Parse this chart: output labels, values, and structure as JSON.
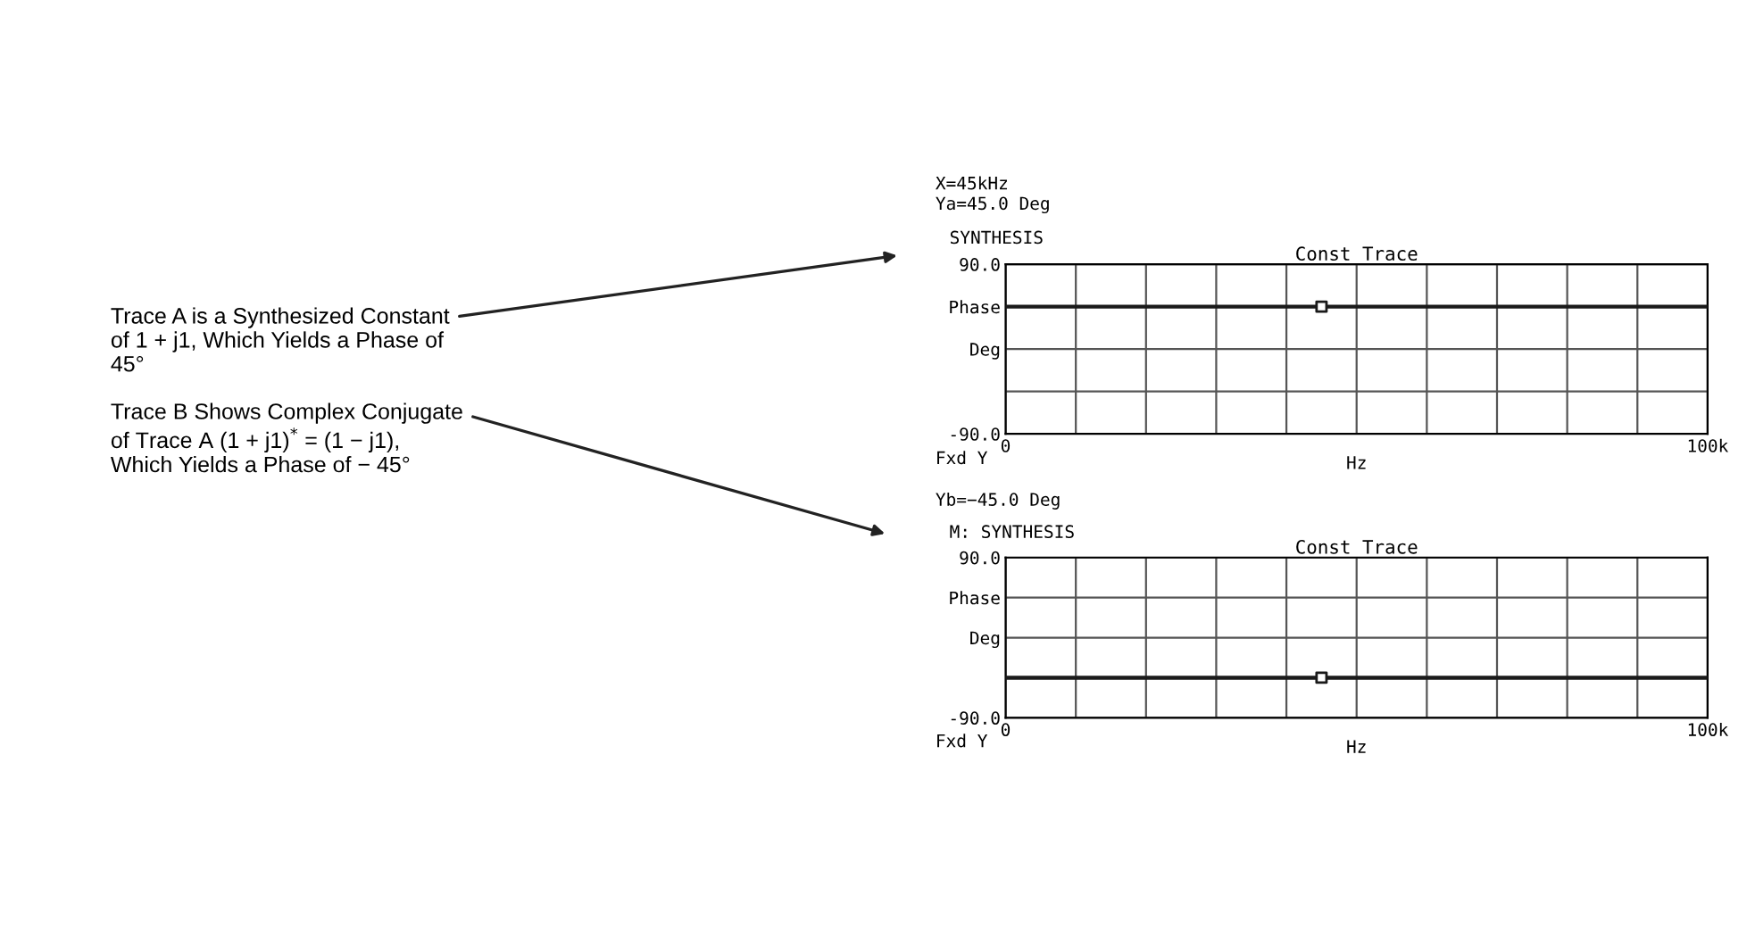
{
  "chart_data": [
    {
      "type": "line",
      "title": "Const Trace",
      "xlabel": "Hz",
      "annotations": [
        "Trace A is a Synthesized Constant\nof 1 + j1, Which Yields a Phase of\n45°",
        "X=45kHz",
        "Ya=45.0 Deg",
        "SYNTHESIS",
        "Fxd Y"
      ],
      "series": [
        {
          "color": "#1a1a1a",
          "x": [
            0,
            100000
          ],
          "values": [
            45,
            45
          ]
        },
        {
          "type": "scatter",
          "color": "#1a1a1a",
          "x": [
            45000
          ],
          "values": [
            45
          ],
          "marker": "square"
        }
      ],
      "xlim": [
        0,
        100000
      ],
      "ylim": [
        -90,
        90
      ],
      "xticks": [
        0,
        {
          "value": 10000,
          "label": null
        },
        {
          "value": 20000,
          "label": null
        },
        {
          "value": 30000,
          "label": null
        },
        {
          "value": 40000,
          "label": null
        },
        {
          "value": 50000,
          "label": null
        },
        {
          "value": 60000,
          "label": null
        },
        {
          "value": 70000,
          "label": null
        },
        {
          "value": 80000,
          "label": null
        },
        {
          "value": 90000,
          "label": null
        },
        {
          "value": 100000,
          "label": "100k"
        }
      ],
      "yticks": [
        {
          "value": 90,
          "label": "90.0"
        },
        {
          "value": 45,
          "label": "Phase"
        },
        {
          "value": 0,
          "label": "Deg"
        },
        {
          "value": -45,
          "label": null
        },
        {
          "value": -90,
          "label": "-90.0"
        }
      ],
      "grid": true
    },
    {
      "type": "line",
      "title": "Const Trace",
      "xlabel": "Hz",
      "annotations": [
        "Trace B Shows Complex Conjugate\nof Trace A (1 + j1)$^{*}$ = (1 − j1),\nWhich Yields a Phase of − 45°",
        "Yb=−45.0 Deg",
        "M: SYNTHESIS",
        "Fxd Y"
      ],
      "series": [
        {
          "color": "#1a1a1a",
          "x": [
            0,
            100000
          ],
          "values": [
            -45,
            -45
          ]
        },
        {
          "type": "scatter",
          "color": "#1a1a1a",
          "x": [
            45000
          ],
          "values": [
            -45
          ],
          "marker": "square"
        }
      ],
      "xlim": [
        0,
        100000
      ],
      "ylim": [
        -90,
        90
      ],
      "xticks": [
        0,
        {
          "value": 10000,
          "label": null
        },
        {
          "value": 20000,
          "label": null
        },
        {
          "value": 30000,
          "label": null
        },
        {
          "value": 40000,
          "label": null
        },
        {
          "value": 50000,
          "label": null
        },
        {
          "value": 60000,
          "label": null
        },
        {
          "value": 70000,
          "label": null
        },
        {
          "value": 80000,
          "label": null
        },
        {
          "value": 90000,
          "label": null
        },
        {
          "value": 100000,
          "label": "100k"
        }
      ],
      "yticks": [
        {
          "value": 90,
          "label": "90.0"
        },
        {
          "value": 45,
          "label": "Phase"
        },
        {
          "value": 0,
          "label": "Deg"
        },
        {
          "value": -45,
          "label": null
        },
        {
          "value": -90,
          "label": "-90.0"
        }
      ],
      "grid": true
    }
  ]
}
